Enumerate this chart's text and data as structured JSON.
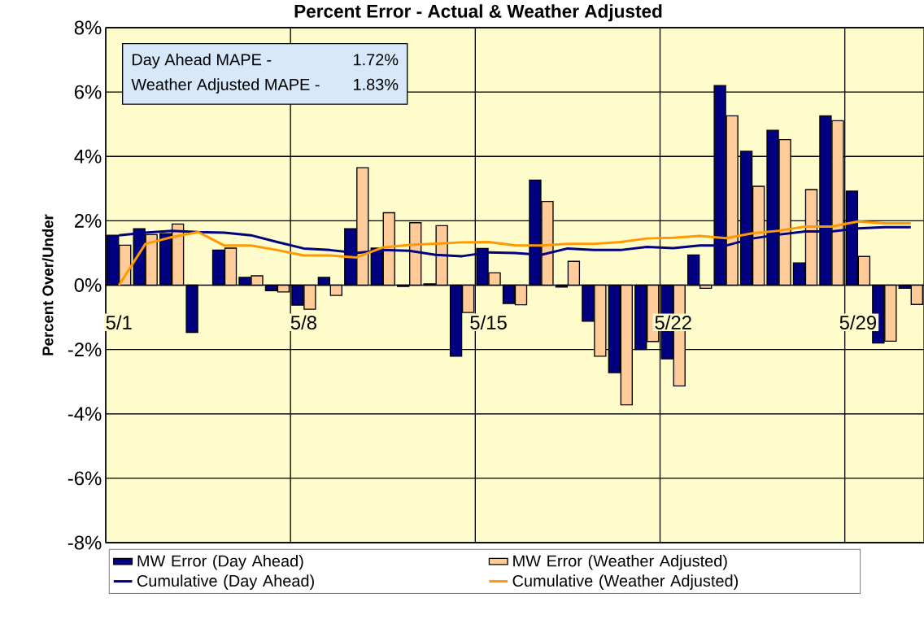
{
  "chart_data": {
    "type": "bar",
    "title": "Percent Error - Actual & Weather Adjusted",
    "ylabel": "Percent Over/Under",
    "categories": [
      "5/1",
      null,
      null,
      null,
      null,
      null,
      null,
      "5/8",
      null,
      null,
      null,
      null,
      null,
      null,
      "5/15",
      null,
      null,
      null,
      null,
      null,
      null,
      "5/22",
      null,
      null,
      null,
      null,
      null,
      null,
      "5/29",
      null,
      null
    ],
    "series": [
      {
        "name": "MW Error (Day Ahead)",
        "type": "bar",
        "color": "#000080",
        "values": [
          1.55,
          1.75,
          1.6,
          -1.47,
          1.09,
          0.24,
          -0.17,
          -0.62,
          0.24,
          1.75,
          1.15,
          -0.04,
          0.04,
          -2.21,
          1.14,
          -0.57,
          3.26,
          -0.06,
          -1.12,
          -2.72,
          -2.0,
          -2.29,
          0.94,
          6.2,
          4.16,
          4.81,
          0.69,
          5.26,
          2.92,
          -1.8,
          -0.1
        ]
      },
      {
        "name": "MW Error (Weather Adjusted)",
        "type": "bar",
        "color": "#ffcc99",
        "values": [
          1.24,
          1.57,
          1.9,
          null,
          1.15,
          0.29,
          -0.21,
          -0.75,
          -0.32,
          3.65,
          2.25,
          1.94,
          1.85,
          -0.85,
          0.38,
          -0.61,
          2.6,
          0.74,
          -2.21,
          -3.72,
          -1.75,
          -3.13,
          -0.1,
          5.26,
          3.07,
          4.52,
          2.97,
          5.11,
          0.89,
          -1.74,
          -0.6
        ]
      },
      {
        "name": "Cumulative (Day Ahead)",
        "type": "line",
        "color": "#000080",
        "values": [
          1.55,
          1.63,
          1.69,
          1.65,
          1.63,
          1.55,
          1.34,
          1.14,
          1.09,
          1.0,
          1.09,
          1.07,
          0.94,
          0.9,
          1.02,
          1.0,
          0.94,
          1.14,
          1.09,
          1.09,
          1.19,
          1.15,
          1.23,
          1.23,
          1.45,
          1.57,
          1.67,
          1.67,
          1.76,
          1.8,
          1.8
        ]
      },
      {
        "name": "Cumulative (Weather Adjusted)",
        "type": "line",
        "color": "#ff9900",
        "values": [
          0.0,
          1.28,
          1.49,
          1.65,
          1.23,
          1.23,
          1.09,
          0.92,
          0.92,
          0.86,
          1.17,
          1.25,
          1.29,
          1.33,
          1.34,
          1.24,
          1.23,
          1.28,
          1.28,
          1.34,
          1.45,
          1.47,
          1.53,
          1.46,
          1.61,
          1.69,
          1.82,
          1.82,
          1.98,
          1.92,
          1.92
        ]
      }
    ],
    "ylim": [
      -8,
      8
    ],
    "yticks": [
      {
        "value": -8,
        "label": "-8%"
      },
      {
        "value": -6,
        "label": "-6%"
      },
      {
        "value": -4,
        "label": "-4%"
      },
      {
        "value": -2,
        "label": "-2%"
      },
      {
        "value": 0,
        "label": "0%"
      },
      {
        "value": 2,
        "label": "2%"
      },
      {
        "value": 4,
        "label": "4%"
      },
      {
        "value": 6,
        "label": "6%"
      },
      {
        "value": 8,
        "label": "8%"
      }
    ],
    "grid": true,
    "legend": "bottom",
    "annotations": [
      "Day Ahead  MAPE -",
      "1.72%",
      "Weather Adjusted MAPE -",
      "1.83%"
    ]
  }
}
